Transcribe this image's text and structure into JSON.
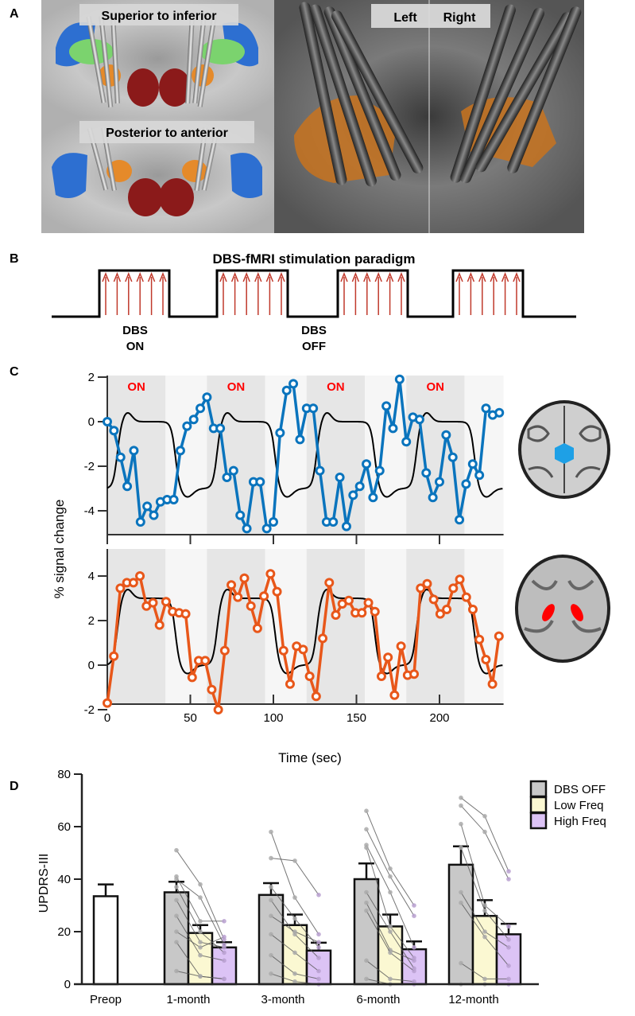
{
  "panels": {
    "a": {
      "label": "A",
      "view1_title": "Superior to inferior",
      "view2_title": "Posterior to anterior",
      "left_label": "Left",
      "right_label": "Right"
    },
    "b": {
      "label": "B",
      "title": "DBS-fMRI stimulation paradigm",
      "on_label_1": "DBS",
      "on_label_2": "ON",
      "off_label_1": "DBS",
      "off_label_2": "OFF",
      "blocks": 4,
      "pulses_per_block": 6,
      "pulse_color": "#c0392b"
    },
    "c": {
      "label": "C",
      "on_text": "ON",
      "on_color": "#ff0000"
    },
    "d": {
      "label": "D"
    }
  },
  "chart_data": [
    {
      "type": "line",
      "panel": "C-top",
      "ylabel": "% signal change",
      "ylim": [
        -5,
        2
      ],
      "yticks": [
        2,
        0,
        -2,
        -4
      ],
      "xlim": [
        0,
        240
      ],
      "xticks": [
        0,
        50,
        100,
        150,
        200
      ],
      "on_blocks": [
        [
          0,
          35
        ],
        [
          60,
          95
        ],
        [
          120,
          155
        ],
        [
          180,
          215
        ]
      ],
      "block_labels": [
        "ON",
        "ON",
        "ON",
        "ON"
      ],
      "series": [
        {
          "role": "measured",
          "color": "#0a74bd",
          "x_step": 4,
          "values": [
            0,
            -0.4,
            -1.6,
            -2.9,
            -1.3,
            -4.5,
            -3.8,
            -4.2,
            -3.6,
            -3.5,
            -3.5,
            -1.3,
            -0.2,
            0.1,
            0.6,
            1.1,
            -0.3,
            -0.3,
            -2.5,
            -2.2,
            -4.2,
            -4.8,
            -2.7,
            -2.7,
            -4.8,
            -4.5,
            -0.5,
            1.4,
            1.7,
            -0.8,
            0.6,
            0.6,
            -2.2,
            -4.5,
            -4.5,
            -2.5,
            -4.7,
            -3.3,
            -2.9,
            -1.9,
            -3.4,
            -2.2,
            0.7,
            -0.3,
            1.9,
            -0.9,
            0.2,
            0.1,
            -2.3,
            -3.4,
            -2.7,
            -0.6,
            -1.6,
            -4.4,
            -2.8,
            -1.9,
            -2.4,
            0.6,
            0.3,
            0.4
          ]
        },
        {
          "role": "model",
          "color": "#000000",
          "off_level": -3,
          "on_level": 0
        }
      ],
      "roi_color": "#1ea0e6"
    },
    {
      "type": "line",
      "panel": "C-bottom",
      "ylabel": "% signal change",
      "xlabel": "Time (sec)",
      "ylim": [
        -2,
        5
      ],
      "yticks": [
        4,
        2,
        0,
        -2
      ],
      "xlim": [
        0,
        240
      ],
      "xticks": [
        0,
        50,
        100,
        150,
        200
      ],
      "on_blocks": [
        [
          0,
          35
        ],
        [
          60,
          95
        ],
        [
          120,
          155
        ],
        [
          180,
          215
        ]
      ],
      "series": [
        {
          "role": "measured",
          "color": "#e8571a",
          "x_step": 3.93,
          "values": [
            -1.7,
            0.4,
            3.45,
            3.7,
            3.7,
            4.0,
            2.65,
            2.8,
            1.8,
            2.85,
            2.4,
            2.35,
            2.3,
            -0.55,
            0.2,
            0.2,
            -1.1,
            -2.0,
            0.65,
            3.6,
            3.05,
            3.9,
            2.65,
            1.65,
            3.1,
            4.1,
            3.3,
            0.65,
            -0.85,
            0.85,
            0.7,
            -0.5,
            -1.4,
            1.2,
            3.7,
            2.25,
            2.75,
            2.9,
            2.35,
            2.35,
            2.8,
            2.4,
            -0.5,
            0.35,
            -1.35,
            0.85,
            -0.45,
            -0.4,
            3.45,
            3.65,
            2.95,
            2.3,
            2.5,
            3.45,
            3.85,
            3.05,
            2.5,
            1.15,
            0.25,
            -0.85,
            1.3
          ]
        },
        {
          "role": "model",
          "color": "#000000",
          "off_level": 0,
          "on_level": 3
        }
      ],
      "roi_color": "#ff0000"
    },
    {
      "type": "bar",
      "panel": "D",
      "ylabel": "UPDRS-III",
      "ylim": [
        0,
        80
      ],
      "yticks": [
        0,
        20,
        40,
        60,
        80
      ],
      "categories": [
        "Preop",
        "1-month",
        "3-month",
        "6-month",
        "12-month"
      ],
      "legend": {
        "position": "top-right",
        "entries": [
          "DBS OFF",
          "Low Freq",
          "High Freq"
        ]
      },
      "series_colors": {
        "Preop": "#ffffff",
        "DBS OFF": "#c8c8c8",
        "Low Freq": "#fbf8d2",
        "High Freq": "#dcc3f5"
      },
      "preop": {
        "mean": 33.5,
        "sem": 4.5
      },
      "series": [
        {
          "name": "DBS OFF",
          "values": [
            null,
            35,
            34,
            40,
            45.5
          ],
          "sem": [
            null,
            4,
            4.5,
            6,
            7
          ]
        },
        {
          "name": "Low Freq",
          "values": [
            null,
            19.5,
            22.5,
            22,
            26
          ],
          "sem": [
            null,
            3,
            4,
            4.5,
            6
          ]
        },
        {
          "name": "High Freq",
          "values": [
            null,
            14,
            12.8,
            13.3,
            19
          ],
          "sem": [
            null,
            2,
            3,
            3,
            4
          ]
        }
      ],
      "subjects": {
        "1-month": [
          [
            51,
            38,
            17
          ],
          [
            41,
            24,
            24
          ],
          [
            40,
            33,
            15
          ],
          [
            37,
            20,
            12
          ],
          [
            32,
            16,
            14
          ],
          [
            26,
            11,
            9
          ],
          [
            20,
            14,
            18
          ],
          [
            16,
            3,
            2
          ],
          [
            5,
            3,
            2
          ]
        ],
        "3-month": [
          [
            58,
            33,
            19
          ],
          [
            48,
            47,
            34
          ],
          [
            37,
            25,
            14
          ],
          [
            32,
            19,
            10
          ],
          [
            26,
            20,
            16
          ],
          [
            19,
            12,
            5
          ],
          [
            11,
            4,
            2
          ],
          [
            4,
            1,
            0
          ]
        ],
        "6-month": [
          [
            66,
            44,
            30
          ],
          [
            59,
            41,
            26
          ],
          [
            53,
            35,
            14
          ],
          [
            52,
            22,
            10
          ],
          [
            35,
            20,
            6
          ],
          [
            31,
            13,
            9
          ],
          [
            28,
            12,
            5
          ],
          [
            9,
            2,
            1
          ],
          [
            2,
            0,
            0
          ]
        ],
        "12-month": [
          [
            71,
            64,
            43
          ],
          [
            68,
            58,
            40
          ],
          [
            61,
            30,
            22
          ],
          [
            52,
            28,
            17
          ],
          [
            35,
            20,
            14
          ],
          [
            31,
            18,
            7
          ],
          [
            8,
            2,
            2
          ],
          [
            0,
            0,
            0
          ]
        ]
      }
    }
  ]
}
